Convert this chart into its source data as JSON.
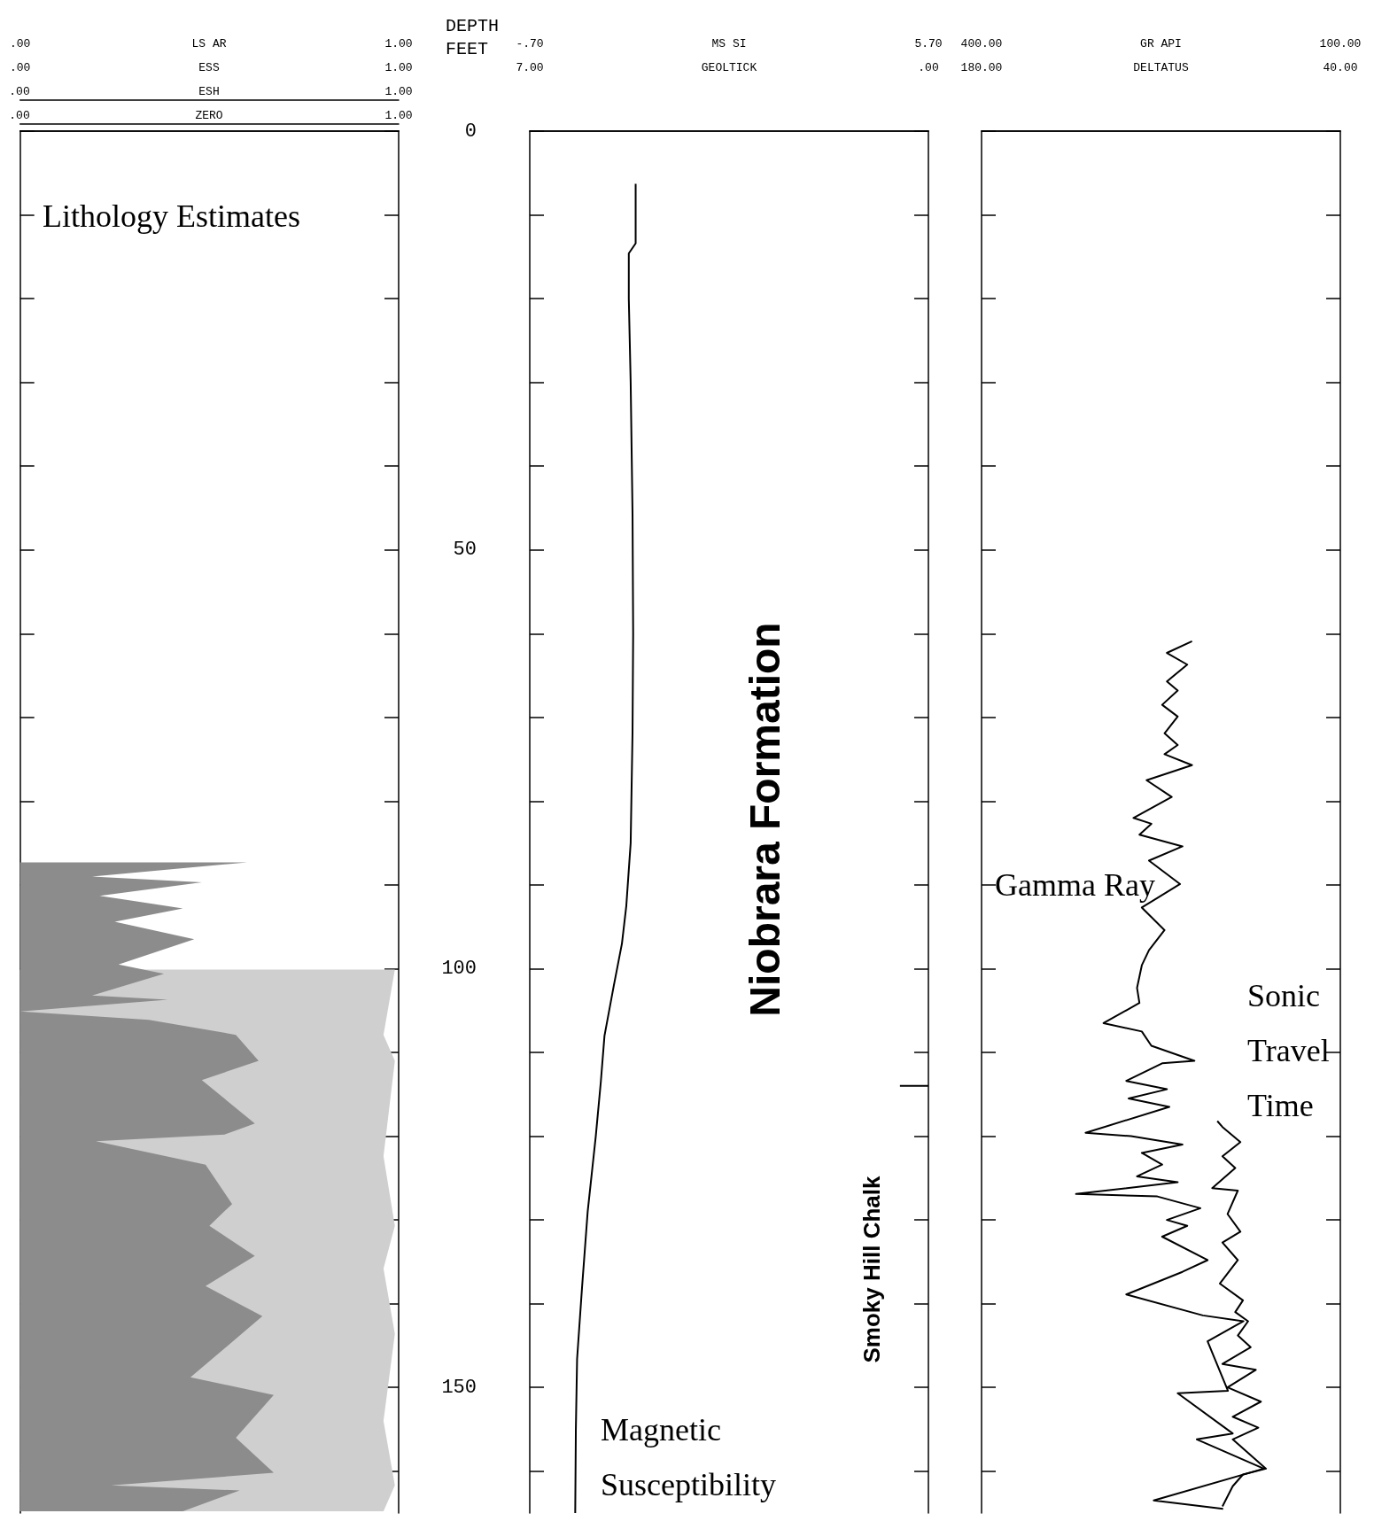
{
  "chart_data": [
    {
      "type": "area",
      "title": "Lithology Estimates",
      "orientation": "horizontal",
      "tick_labels": "x",
      "grid": false,
      "xlabel": "LS AR",
      "xlim": [
        0,
        1
      ],
      "xticks": [
        {
          "value": 0,
          "label": ".00"
        },
        {
          "value": 1,
          "label": "1.00"
        }
      ],
      "x2label": "ESS",
      "x2lim": [
        0,
        1
      ],
      "x2ticks": [
        {
          "value": 0,
          "label": ".00"
        },
        {
          "value": 1,
          "label": "1.00"
        }
      ],
      "annotations": [
        ".00",
        "ESH",
        "1.00",
        ".00",
        "ZERO",
        "1.00"
      ],
      "ylim": [
        165,
        0
      ],
      "yticks": [
        0,
        {
          "value": 10,
          "label": null
        },
        {
          "value": 20,
          "label": null
        },
        {
          "value": 30,
          "label": null
        },
        {
          "value": 40,
          "label": null
        },
        50,
        {
          "value": 60,
          "label": null
        },
        {
          "value": 70,
          "label": null
        },
        {
          "value": 80,
          "label": null
        },
        {
          "value": 90,
          "label": null
        },
        100,
        {
          "value": 110,
          "label": null
        },
        {
          "value": 120,
          "label": null
        },
        {
          "value": 130,
          "label": null
        },
        {
          "value": 140,
          "label": null
        },
        150,
        {
          "value": 160,
          "label": null
        }
      ],
      "series": [
        {
          "color": "#8c8c8c",
          "x": [
            87.3,
            89.0,
            89.7,
            91.3,
            92.8,
            94.4,
            96.5,
            99.5,
            100.6,
            103.2,
            103.7,
            105.1,
            106.1,
            107.9,
            111.0,
            113.3,
            118.5,
            119.8,
            120.6,
            123.4,
            128.1,
            130.7,
            134.3,
            137.9,
            141.5,
            148.8,
            150.9,
            156.0,
            160.2,
            161.7,
            162.3,
            164.8
          ],
          "values": [
            0.6,
            0.19,
            0.48,
            0.21,
            0.43,
            0.25,
            0.46,
            0.26,
            0.38,
            0.19,
            0.39,
            0.0,
            0.34,
            0.57,
            0.63,
            0.48,
            0.62,
            0.54,
            0.2,
            0.49,
            0.56,
            0.5,
            0.62,
            0.49,
            0.64,
            0.45,
            0.67,
            0.57,
            0.67,
            0.24,
            0.58,
            0.43
          ]
        },
        {
          "color": "#cfcfcf",
          "x": [
            100.1,
            107.9,
            111.0,
            122.4,
            130.7,
            135.8,
            143.6,
            154.0,
            161.7,
            164.8
          ],
          "values": [
            0.99,
            0.96,
            0.99,
            0.96,
            0.99,
            0.96,
            0.99,
            0.96,
            0.99,
            0.96
          ]
        }
      ]
    },
    {
      "type": "line",
      "orientation": "horizontal",
      "grid": false,
      "ylabel": "DEPTH FEET",
      "xlabel": "MS SI",
      "xlim": [
        -0.7,
        5.7
      ],
      "xticks": [
        {
          "value": -0.7,
          "label": "-.70"
        },
        {
          "value": 5.7,
          "label": "5.70"
        }
      ],
      "x2label": "GEOLTICK",
      "x2lim": [
        7,
        0
      ],
      "x2ticks": [
        {
          "value": 7,
          "label": "7.00"
        },
        {
          "value": 0,
          "label": ".00"
        }
      ],
      "ylim": [
        165,
        0
      ],
      "yticks": [
        0,
        {
          "value": 10,
          "label": null
        },
        {
          "value": 20,
          "label": null
        },
        {
          "value": 30,
          "label": null
        },
        {
          "value": 40,
          "label": null
        },
        50,
        {
          "value": 60,
          "label": null
        },
        {
          "value": 70,
          "label": null
        },
        {
          "value": 80,
          "label": null
        },
        {
          "value": 90,
          "label": null
        },
        100,
        {
          "value": 110,
          "label": null
        },
        {
          "value": 120,
          "label": null
        },
        {
          "value": 130,
          "label": null
        },
        {
          "value": 140,
          "label": null
        },
        150,
        {
          "value": 160,
          "label": null
        }
      ],
      "annotations": [
        "Niobrara Formation",
        "Smoky Hill Chalk"
      ],
      "series": [
        {
          "name": "Magnetic Susceptibility",
          "color": "#000000",
          "x": [
            6.3,
            13.4,
            14.6,
            20,
            30,
            45.7,
            60,
            71.8,
            85,
            92.5,
            97,
            102,
            108,
            113.6,
            120,
            129,
            138,
            146.6,
            155,
            165
          ],
          "values": [
            1.0,
            1.0,
            0.89,
            0.89,
            0.92,
            0.95,
            0.96,
            0.95,
            0.92,
            0.85,
            0.78,
            0.65,
            0.5,
            0.44,
            0.36,
            0.23,
            0.14,
            0.06,
            0.04,
            0.03
          ]
        },
        {
          "color": "#000000",
          "axis": "x2",
          "x": [
            114,
            114
          ],
          "values": [
            0.5,
            0
          ]
        }
      ]
    },
    {
      "type": "line",
      "orientation": "horizontal",
      "tick_labels": "x",
      "grid": false,
      "xlabel": "GR API",
      "xlim": [
        400,
        100
      ],
      "xticks": [
        {
          "value": 400,
          "label": "400.00"
        },
        {
          "value": 100,
          "label": "100.00"
        }
      ],
      "x2label": "DELTATUS",
      "x2lim": [
        180,
        40
      ],
      "x2ticks": [
        {
          "value": 180,
          "label": "180.00"
        },
        {
          "value": 40,
          "label": "40.00"
        }
      ],
      "ylim": [
        165,
        0
      ],
      "yticks": [
        0,
        {
          "value": 10,
          "label": null
        },
        {
          "value": 20,
          "label": null
        },
        {
          "value": 30,
          "label": null
        },
        {
          "value": 40,
          "label": null
        },
        50,
        {
          "value": 60,
          "label": null
        },
        {
          "value": 70,
          "label": null
        },
        {
          "value": 80,
          "label": null
        },
        {
          "value": 90,
          "label": null
        },
        100,
        {
          "value": 110,
          "label": null
        },
        {
          "value": 120,
          "label": null
        },
        {
          "value": 130,
          "label": null
        },
        {
          "value": 140,
          "label": null
        },
        150,
        {
          "value": 160,
          "label": null
        }
      ],
      "series": [
        {
          "name": "Gamma Ray",
          "color": "#000000",
          "x": [
            60.9,
            62.3,
            63.7,
            65.7,
            66.8,
            68.5,
            69.9,
            71.9,
            73.3,
            74.4,
            75.7,
            77.5,
            79.5,
            82.0,
            82.7,
            84.0,
            85.4,
            87.1,
            89.9,
            92.7,
            95.4,
            97.8,
            99.6,
            102.3,
            104.1,
            106.5,
            107.5,
            109.2,
            111.0,
            111.3,
            113.4,
            114.4,
            115.5,
            116.5,
            119.6,
            120.0,
            121.0,
            122.0,
            123.4,
            124.8,
            125.5,
            126.9,
            127.2,
            128.6,
            130.0,
            130.7,
            132.0,
            134.8,
            136.2,
            138.9,
            141.4,
            142.1,
            144.5,
            150.4,
            150.7,
            155.5,
            156.2,
            159.7,
            163.5,
            164.5
          ],
          "values": [
            224,
            245,
            228,
            245,
            236,
            249,
            236,
            247,
            236,
            247,
            224,
            262,
            241,
            273,
            258,
            268,
            232,
            260,
            234,
            266,
            247,
            260,
            266,
            270,
            268,
            298,
            266,
            258,
            222,
            249,
            279,
            245,
            277,
            243,
            313,
            275,
            232,
            266,
            249,
            270,
            236,
            321,
            253,
            217,
            245,
            228,
            249,
            211,
            232,
            279,
            215,
            181,
            211,
            194,
            236,
            190,
            220,
            164,
            256,
            198
          ]
        },
        {
          "name": "Sonic Travel Time",
          "color": "#000000",
          "axis": "x2",
          "x": [
            118.2,
            118.9,
            120.7,
            122.4,
            123.8,
            126.2,
            126.5,
            129.3,
            131.4,
            132.7,
            134.8,
            137.6,
            139.6,
            141.0,
            142.1,
            143.8,
            145.2,
            147.2,
            147.9,
            150.0,
            151.7,
            153.5,
            154.8,
            156.2,
            159.7,
            160.4,
            161.8,
            164.2
          ],
          "values": [
            88,
            86,
            79,
            86,
            81,
            90,
            80,
            84,
            79,
            86,
            80,
            87,
            78,
            81,
            76,
            80,
            75,
            86,
            73,
            84,
            71,
            82,
            72,
            82,
            69,
            78,
            82,
            86
          ]
        }
      ]
    }
  ]
}
